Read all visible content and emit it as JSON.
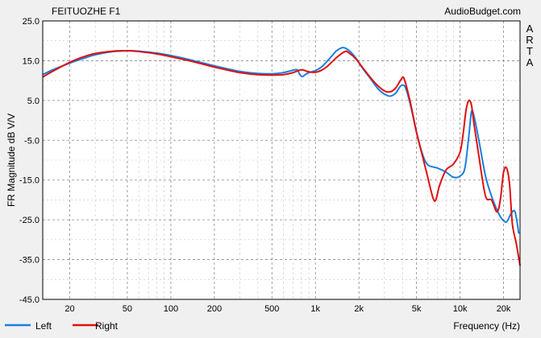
{
  "chart_data": {
    "type": "line",
    "title": "FEITUOZHE F1",
    "watermark": "AudioBudget.com",
    "side_label": "ARTA",
    "xlabel": "Frequency (Hz)",
    "ylabel": "FR Magnitude dB V/V",
    "x_scale": "log",
    "xlim": [
      13,
      26000
    ],
    "ylim": [
      -45,
      25
    ],
    "grid": true,
    "legend_position": "bottom-left",
    "x_ticks": [
      {
        "value": 20,
        "label": "20"
      },
      {
        "value": 50,
        "label": "50"
      },
      {
        "value": 100,
        "label": "100"
      },
      {
        "value": 200,
        "label": "200"
      },
      {
        "value": 500,
        "label": "500"
      },
      {
        "value": 1000,
        "label": "1k"
      },
      {
        "value": 2000,
        "label": "2k"
      },
      {
        "value": 5000,
        "label": "5k"
      },
      {
        "value": 10000,
        "label": "10k"
      },
      {
        "value": 20000,
        "label": "20k"
      }
    ],
    "y_ticks": [
      {
        "value": 25,
        "label": "25.0"
      },
      {
        "value": 15,
        "label": "15.0"
      },
      {
        "value": 5,
        "label": "5.0"
      },
      {
        "value": -5,
        "label": "-5.0"
      },
      {
        "value": -15,
        "label": "-15.0"
      },
      {
        "value": -25,
        "label": "-25.0"
      },
      {
        "value": -35,
        "label": "-35.0"
      },
      {
        "value": -45,
        "label": "-45.0"
      }
    ],
    "series": [
      {
        "name": "Left",
        "color": "#1a7ee0",
        "points": [
          [
            13,
            11.5
          ],
          [
            15,
            12.6
          ],
          [
            20,
            14.4
          ],
          [
            25,
            15.6
          ],
          [
            30,
            16.5
          ],
          [
            40,
            17.3
          ],
          [
            50,
            17.5
          ],
          [
            60,
            17.4
          ],
          [
            80,
            16.9
          ],
          [
            100,
            16.3
          ],
          [
            130,
            15.4
          ],
          [
            160,
            14.6
          ],
          [
            200,
            13.7
          ],
          [
            300,
            12.3
          ],
          [
            400,
            11.8
          ],
          [
            500,
            11.7
          ],
          [
            600,
            12.0
          ],
          [
            700,
            12.6
          ],
          [
            750,
            12.7
          ],
          [
            780,
            11.5
          ],
          [
            810,
            11.0
          ],
          [
            850,
            11.5
          ],
          [
            900,
            12.0
          ],
          [
            1000,
            12.5
          ],
          [
            1100,
            13.4
          ],
          [
            1200,
            14.8
          ],
          [
            1300,
            16.2
          ],
          [
            1400,
            17.5
          ],
          [
            1550,
            18.3
          ],
          [
            1700,
            17.6
          ],
          [
            1900,
            15.7
          ],
          [
            2100,
            13.3
          ],
          [
            2400,
            10.5
          ],
          [
            2700,
            8.0
          ],
          [
            3000,
            6.6
          ],
          [
            3300,
            6.1
          ],
          [
            3600,
            6.9
          ],
          [
            3900,
            8.7
          ],
          [
            4200,
            8.2
          ],
          [
            4600,
            3.0
          ],
          [
            5000,
            -3.0
          ],
          [
            5500,
            -8.5
          ],
          [
            6000,
            -11.2
          ],
          [
            7000,
            -12.0
          ],
          [
            8000,
            -13.0
          ],
          [
            9000,
            -14.3
          ],
          [
            10000,
            -14.0
          ],
          [
            10800,
            -12.0
          ],
          [
            11500,
            -4.0
          ],
          [
            12000,
            2.2
          ],
          [
            12500,
            1.0
          ],
          [
            13500,
            -5.0
          ],
          [
            15000,
            -14.0
          ],
          [
            16500,
            -19.0
          ],
          [
            18000,
            -22.5
          ],
          [
            19500,
            -24.8
          ],
          [
            21000,
            -25.5
          ],
          [
            22500,
            -23.5
          ],
          [
            24000,
            -23.0
          ],
          [
            25500,
            -28.5
          ]
        ]
      },
      {
        "name": "Right",
        "color": "#e01010",
        "points": [
          [
            13,
            10.9
          ],
          [
            15,
            12.2
          ],
          [
            20,
            14.6
          ],
          [
            25,
            16.0
          ],
          [
            30,
            16.8
          ],
          [
            40,
            17.4
          ],
          [
            50,
            17.5
          ],
          [
            60,
            17.3
          ],
          [
            80,
            16.7
          ],
          [
            100,
            16.0
          ],
          [
            130,
            15.1
          ],
          [
            160,
            14.3
          ],
          [
            200,
            13.4
          ],
          [
            300,
            12.0
          ],
          [
            400,
            11.5
          ],
          [
            500,
            11.4
          ],
          [
            600,
            11.5
          ],
          [
            700,
            12.0
          ],
          [
            800,
            12.7
          ],
          [
            900,
            12.2
          ],
          [
            1000,
            12.1
          ],
          [
            1100,
            12.6
          ],
          [
            1200,
            13.5
          ],
          [
            1400,
            15.8
          ],
          [
            1600,
            17.3
          ],
          [
            1700,
            17.0
          ],
          [
            1900,
            15.5
          ],
          [
            2200,
            12.5
          ],
          [
            2600,
            9.3
          ],
          [
            3000,
            7.4
          ],
          [
            3300,
            7.2
          ],
          [
            3600,
            8.2
          ],
          [
            3900,
            10.2
          ],
          [
            4100,
            10.5
          ],
          [
            4500,
            5.0
          ],
          [
            5000,
            -3.0
          ],
          [
            5500,
            -9.0
          ],
          [
            6000,
            -14.5
          ],
          [
            6500,
            -19.5
          ],
          [
            6800,
            -20.0
          ],
          [
            7200,
            -16.5
          ],
          [
            8000,
            -12.5
          ],
          [
            9000,
            -11.0
          ],
          [
            10000,
            -8.0
          ],
          [
            10500,
            -3.5
          ],
          [
            11000,
            2.5
          ],
          [
            11500,
            5.0
          ],
          [
            12000,
            3.8
          ],
          [
            12500,
            -1.0
          ],
          [
            13500,
            -9.0
          ],
          [
            15000,
            -19.0
          ],
          [
            16500,
            -20.0
          ],
          [
            18000,
            -23.0
          ],
          [
            19000,
            -20.0
          ],
          [
            20000,
            -13.0
          ],
          [
            21000,
            -12.0
          ],
          [
            22000,
            -16.0
          ],
          [
            23000,
            -26.0
          ],
          [
            24500,
            -31.0
          ],
          [
            26000,
            -36.5
          ]
        ]
      }
    ]
  }
}
